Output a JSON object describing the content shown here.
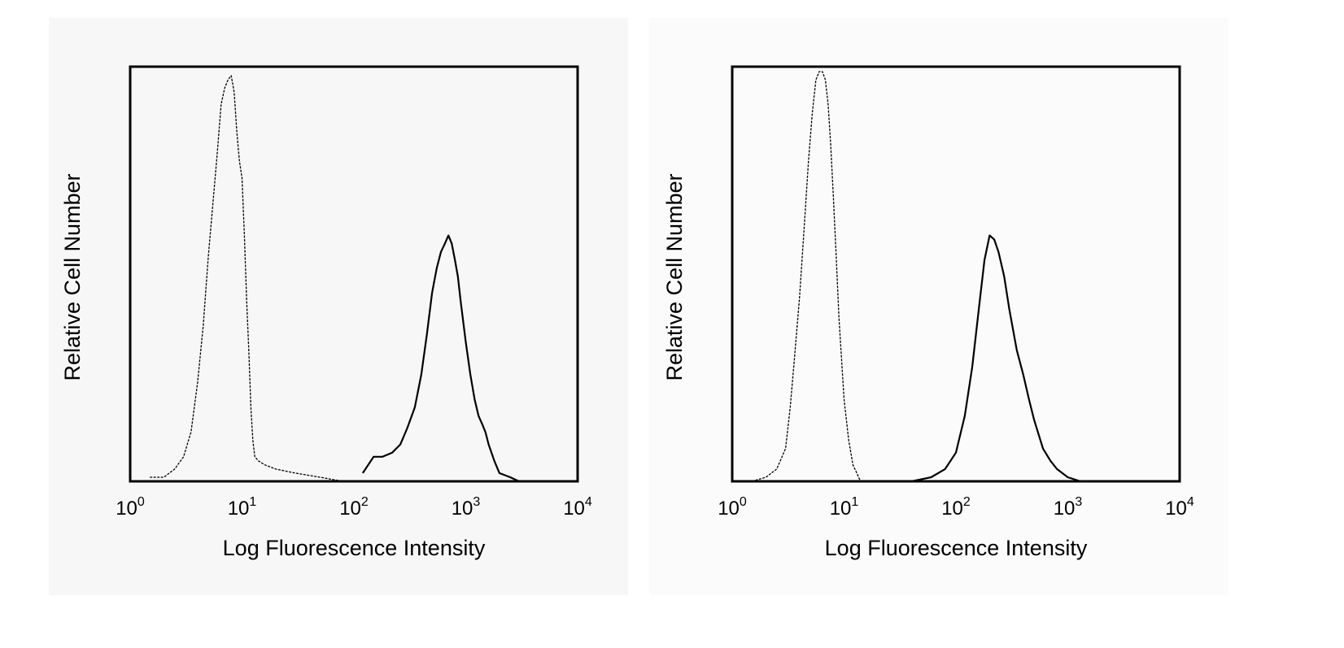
{
  "chart_data": [
    {
      "type": "line",
      "title": "",
      "xlabel": "Log Fluorescence Intensity",
      "ylabel": "Relative Cell Number",
      "x_scale": "log",
      "xlim": [
        1,
        10000
      ],
      "x_ticks": [
        {
          "base": "10",
          "exp": "0"
        },
        {
          "base": "10",
          "exp": "1"
        },
        {
          "base": "10",
          "exp": "2"
        },
        {
          "base": "10",
          "exp": "3"
        },
        {
          "base": "10",
          "exp": "4"
        }
      ],
      "ylim": [
        0,
        100
      ],
      "y_ticks": false,
      "grid": false,
      "legend": "none",
      "series": [
        {
          "style": "dashed-thin",
          "x": [
            1.5,
            2.0,
            2.5,
            3.0,
            3.5,
            4.0,
            4.5,
            5.0,
            5.5,
            6.0,
            6.5,
            7.0,
            7.5,
            8.0,
            8.5,
            9.0,
            9.5,
            10.0,
            10.5,
            11.0,
            11.5,
            12.0,
            12.5,
            13.0,
            14.0,
            16.0,
            20.0,
            30.0,
            50.0,
            80.0
          ],
          "y": [
            1,
            1,
            3,
            6,
            12,
            24,
            38,
            55,
            68,
            80,
            92,
            96,
            98,
            99,
            95,
            85,
            78,
            74,
            60,
            44,
            32,
            18,
            10,
            6,
            5,
            4,
            3,
            2,
            1,
            0
          ]
        },
        {
          "style": "solid",
          "x": [
            120,
            150,
            180,
            220,
            260,
            300,
            350,
            400,
            450,
            500,
            550,
            600,
            650,
            700,
            750,
            800,
            850,
            900,
            1000,
            1100,
            1200,
            1300,
            1400,
            1500,
            1600,
            1800,
            2000,
            2500,
            3000
          ],
          "y": [
            2,
            6,
            6,
            7,
            9,
            13,
            18,
            26,
            36,
            46,
            52,
            56,
            58,
            60,
            58,
            54,
            50,
            44,
            34,
            26,
            20,
            16,
            14,
            12,
            9,
            5,
            2,
            1,
            0
          ]
        }
      ]
    },
    {
      "type": "line",
      "title": "",
      "xlabel": "Log Fluorescence Intensity",
      "ylabel": "Relative Cell Number",
      "x_scale": "log",
      "xlim": [
        1,
        10000
      ],
      "x_ticks": [
        {
          "base": "10",
          "exp": "0"
        },
        {
          "base": "10",
          "exp": "1"
        },
        {
          "base": "10",
          "exp": "2"
        },
        {
          "base": "10",
          "exp": "3"
        },
        {
          "base": "10",
          "exp": "4"
        }
      ],
      "ylim": [
        0,
        100
      ],
      "y_ticks": false,
      "grid": false,
      "legend": "none",
      "series": [
        {
          "style": "dashed-thin",
          "x": [
            1.5,
            2.0,
            2.5,
            3.0,
            3.3,
            3.6,
            4.0,
            4.4,
            4.8,
            5.2,
            5.6,
            6.0,
            6.4,
            6.8,
            7.2,
            7.6,
            8.0,
            8.5,
            9.0,
            10.0,
            11.0,
            12.0,
            13.0,
            14.0
          ],
          "y": [
            0,
            1,
            3,
            8,
            18,
            30,
            45,
            62,
            78,
            90,
            98,
            100,
            100,
            98,
            92,
            82,
            70,
            55,
            40,
            20,
            10,
            4,
            2,
            0
          ]
        },
        {
          "style": "solid",
          "x": [
            40,
            60,
            80,
            100,
            120,
            140,
            160,
            180,
            200,
            220,
            240,
            270,
            300,
            350,
            400,
            450,
            500,
            600,
            700,
            800,
            1000,
            1300,
            1600
          ],
          "y": [
            0,
            1,
            3,
            7,
            16,
            28,
            42,
            54,
            60,
            59,
            56,
            50,
            42,
            32,
            26,
            20,
            15,
            8,
            5,
            3,
            1,
            0,
            0
          ]
        }
      ]
    }
  ]
}
